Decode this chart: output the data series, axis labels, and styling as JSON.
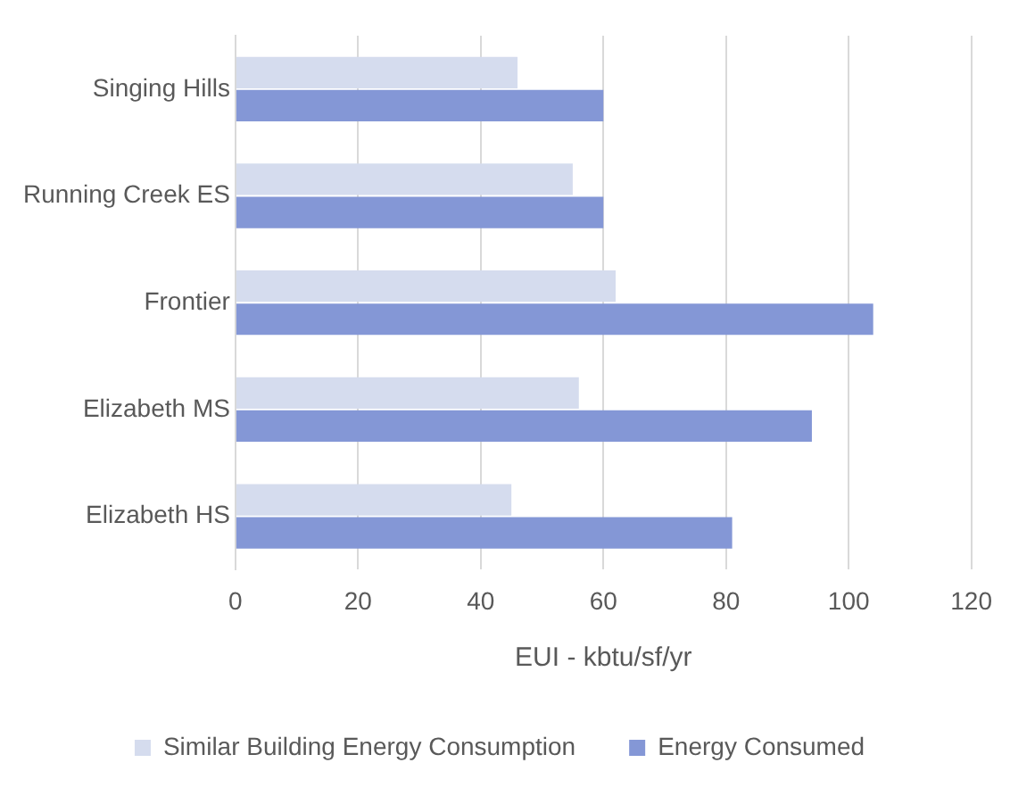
{
  "chart_data": {
    "type": "bar",
    "orientation": "horizontal",
    "xlabel": "EUI - kbtu/sf/yr",
    "categories": [
      "Singing Hills",
      "Running Creek ES",
      "Frontier",
      "Elizabeth MS",
      "Elizabeth HS"
    ],
    "series": [
      {
        "name": "Similar Building Energy Consumption",
        "color": "#d5dcee",
        "values": [
          46,
          55,
          62,
          56,
          45
        ]
      },
      {
        "name": "Energy Consumed",
        "color": "#8497d6",
        "values": [
          60,
          60,
          104,
          94,
          81
        ]
      }
    ],
    "xlim": [
      0,
      120
    ],
    "xticks": [
      0,
      20,
      40,
      60,
      80,
      100,
      120
    ],
    "grid": "x",
    "legend": "bottom"
  }
}
